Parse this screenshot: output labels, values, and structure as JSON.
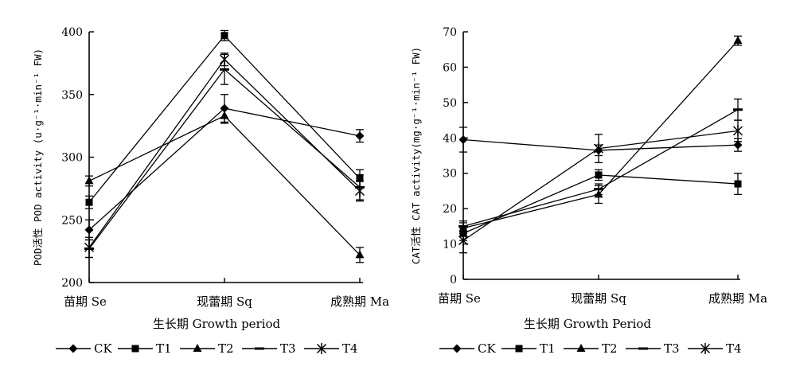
{
  "chart_data": [
    {
      "type": "line",
      "xlabel": "生长期 Growth period",
      "ylabel": "POD活性 POD activity (u·g⁻¹·min⁻¹ FW)",
      "categories": [
        "苗期 Se",
        "现蕾期 Sq",
        "成熟期 Ma"
      ],
      "ylim": [
        200,
        400
      ],
      "yticks": [
        200,
        250,
        300,
        350,
        400
      ],
      "legend": "bottom",
      "series": [
        {
          "name": "CK",
          "marker": "diamond",
          "values": [
            242,
            339,
            317
          ],
          "errors": [
            8,
            11,
            5
          ]
        },
        {
          "name": "T1",
          "marker": "square",
          "values": [
            264,
            397,
            283
          ],
          "errors": [
            5,
            4,
            7
          ]
        },
        {
          "name": "T2",
          "marker": "triangle",
          "values": [
            281,
            333,
            222
          ],
          "errors": [
            4,
            6,
            6
          ]
        },
        {
          "name": "T3",
          "marker": "dash",
          "values": [
            227,
            370,
            276
          ],
          "errors": [
            7,
            12,
            10
          ]
        },
        {
          "name": "T4",
          "marker": "star",
          "values": [
            228,
            378,
            273
          ],
          "errors": [
            8,
            5,
            8
          ]
        }
      ]
    },
    {
      "type": "line",
      "xlabel": "生长期 Growth Period",
      "ylabel": "CAT活性 CAT activity(mg·g⁻¹·min⁻¹ FW)",
      "categories": [
        "苗期 Se",
        "现蕾期 Sq",
        "成熟期 Ma"
      ],
      "ylim": [
        0,
        70
      ],
      "yticks": [
        0,
        10,
        20,
        30,
        40,
        50,
        60,
        70
      ],
      "legend": "bottom",
      "series": [
        {
          "name": "CK",
          "marker": "diamond",
          "values": [
            39.5,
            36.5,
            38
          ],
          "errors": [
            3.5,
            1.5,
            1.8
          ]
        },
        {
          "name": "T1",
          "marker": "square",
          "values": [
            13,
            29.5,
            27
          ],
          "errors": [
            2,
            1.5,
            3
          ]
        },
        {
          "name": "T2",
          "marker": "triangle",
          "values": [
            14.5,
            24,
            67.5
          ],
          "errors": [
            1.5,
            2.5,
            1.3
          ]
        },
        {
          "name": "T3",
          "marker": "dash",
          "values": [
            15,
            25.5,
            48
          ],
          "errors": [
            1.5,
            1.5,
            3
          ]
        },
        {
          "name": "T4",
          "marker": "star",
          "values": [
            11,
            37,
            42
          ],
          "errors": [
            3.5,
            4,
            3
          ]
        }
      ]
    }
  ]
}
